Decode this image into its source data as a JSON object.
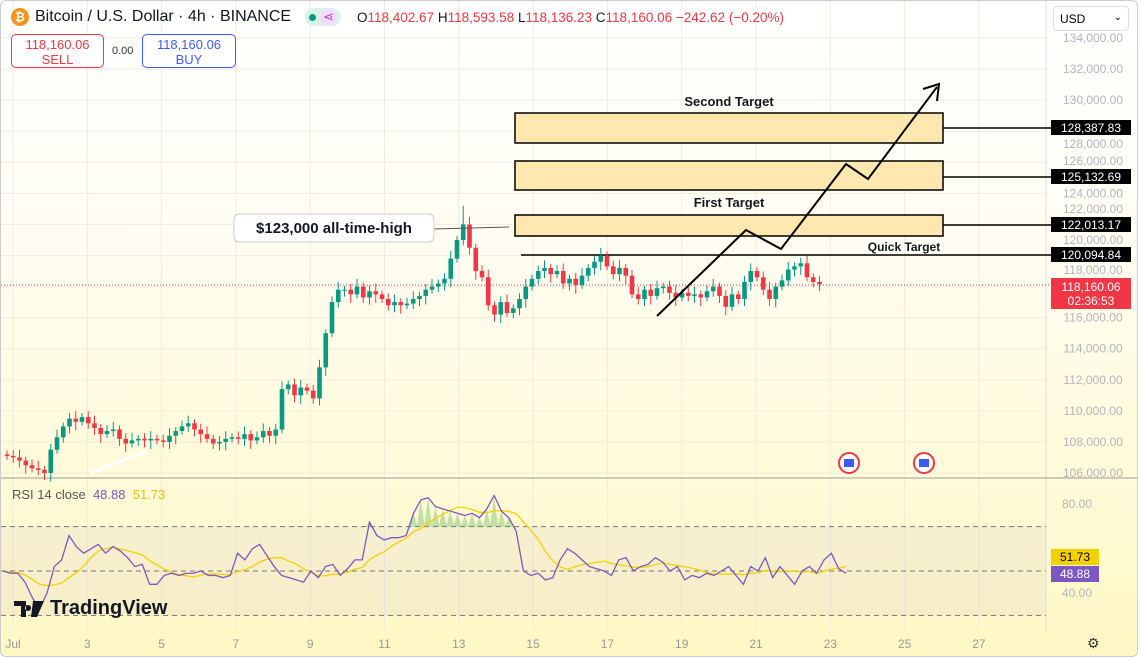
{
  "header": {
    "symbol": "Bitcoin / U.S. Dollar · 4h · BINANCE",
    "icon": "bitcoin-icon",
    "o_label": "O",
    "o": "118,402.67",
    "h_label": "H",
    "h": "118,593.58",
    "l_label": "L",
    "l": "118,136.23",
    "c_label": "C",
    "c": "118,160.06",
    "change": "−242.62 (−0.20%)"
  },
  "trade": {
    "sell_price": "118,160.06",
    "sell_label": "SELL",
    "spread": "0.00",
    "buy_price": "118,160.06",
    "buy_label": "BUY"
  },
  "currency": "USD",
  "colors": {
    "up": "#089981",
    "down": "#f23645",
    "rsi": "#7e57c2",
    "rsi_ma": "#f5d000"
  },
  "annotations": {
    "second_target": "Second Target",
    "first_target": "First Target",
    "quick_target": "Quick Target",
    "ath": "$123,000 all-time-high"
  },
  "price_labels": [
    "128,387.83",
    "125,132.69",
    "122,013.17",
    "120,094.84"
  ],
  "last_price": {
    "price": "118,160.06",
    "countdown": "02:36:53"
  },
  "rsi": {
    "label": "RSI 14 close",
    "value": "48.88",
    "ma_value": "51.73",
    "axis": [
      "80.00",
      "40.00"
    ]
  },
  "watermark": "TradingView",
  "chart_data": {
    "type": "candlestick",
    "y_axis": {
      "min": 106000,
      "max": 134000,
      "step": 2000,
      "ticks": [
        "134,000.00",
        "132,000.00",
        "130,000.00",
        "128,000.00",
        "126,000.00",
        "124,000.00",
        "122,000.00",
        "120,000.00",
        "118,000.00",
        "116,000.00",
        "114,000.00",
        "112,000.00",
        "110,000.00",
        "108,000.00",
        "106,000.00"
      ]
    },
    "x_ticks": [
      "Jul",
      "3",
      "5",
      "7",
      "9",
      "11",
      "13",
      "15",
      "17",
      "19",
      "21",
      "23",
      "25",
      "27"
    ],
    "closes": [
      107100,
      107000,
      106800,
      106500,
      106300,
      106200,
      106000,
      107500,
      108300,
      109000,
      109500,
      109300,
      109600,
      109200,
      108900,
      108500,
      108700,
      108800,
      108200,
      107900,
      108100,
      108200,
      108100,
      108200,
      108100,
      108000,
      108400,
      108700,
      109000,
      109200,
      108800,
      108500,
      108200,
      107900,
      108000,
      108200,
      108300,
      108200,
      108500,
      108100,
      108300,
      108700,
      108400,
      108800,
      111400,
      111700,
      111000,
      111500,
      111300,
      110800,
      112800,
      115000,
      117000,
      117800,
      117800,
      117500,
      118000,
      117300,
      117700,
      117500,
      117200,
      116800,
      117000,
      116800,
      116900,
      117200,
      117400,
      117800,
      118000,
      118200,
      118500,
      119800,
      121000,
      122000,
      120500,
      119000,
      118600,
      116800,
      116200,
      117000,
      116300,
      116600,
      117200,
      118000,
      118500,
      119000,
      119200,
      118800,
      119000,
      118200,
      118500,
      118100,
      118700,
      119200,
      119600,
      120000,
      119300,
      118800,
      119200,
      118700,
      117500,
      117200,
      117800,
      117400,
      117900,
      118000,
      117600,
      117300,
      117600,
      117400,
      117500,
      117300,
      117700,
      118000,
      117400,
      116700,
      117500,
      117200,
      118300,
      119000,
      118600,
      117800,
      117200,
      118000,
      118400,
      119100,
      119300,
      119500,
      118600,
      118300,
      118160
    ],
    "rsi_values": [
      50,
      49,
      49,
      45,
      38,
      33,
      40,
      52,
      55,
      66,
      61,
      58,
      60,
      62,
      58,
      61,
      59,
      56,
      52,
      53,
      44,
      44,
      48,
      49,
      48,
      49,
      49,
      50,
      48,
      48,
      47,
      48,
      58,
      55,
      60,
      62,
      57,
      52,
      48,
      47,
      46,
      45,
      50,
      47,
      52,
      53,
      48,
      51,
      55,
      55,
      72,
      66,
      64,
      65,
      65,
      66,
      76,
      82,
      83,
      79,
      78,
      77,
      76,
      75,
      76,
      74,
      78,
      84,
      77,
      74,
      68,
      50,
      48,
      49,
      46,
      47,
      55,
      60,
      58,
      55,
      52,
      51,
      50,
      48,
      55,
      56,
      50,
      52,
      53,
      56,
      54,
      50,
      52,
      46,
      48,
      47,
      49,
      48,
      50,
      52,
      48,
      44,
      52,
      50,
      56,
      47,
      52,
      48,
      44,
      50,
      52,
      49,
      55,
      58,
      51,
      49
    ],
    "rsi_levels": [
      70,
      50,
      30
    ]
  }
}
